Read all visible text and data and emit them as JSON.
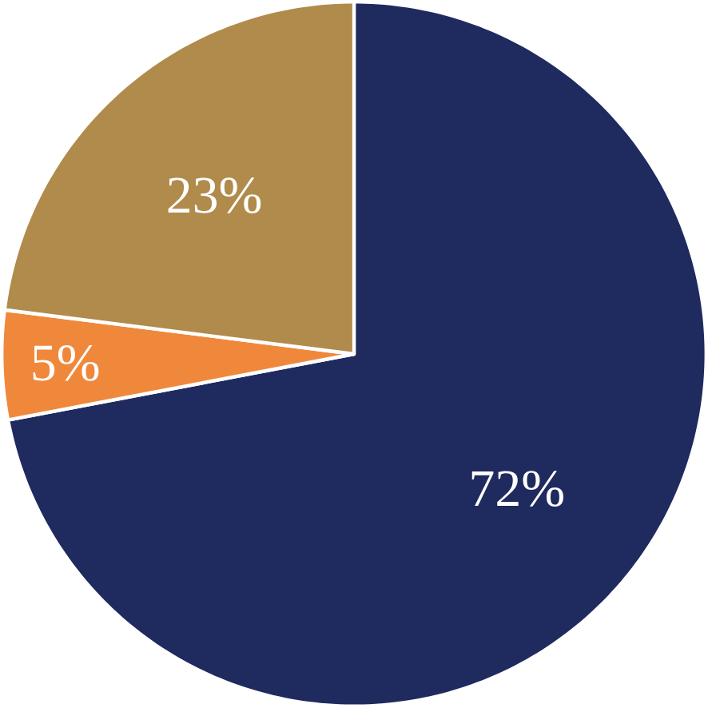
{
  "chart_data": {
    "type": "pie",
    "categories": [
      null,
      null,
      null
    ],
    "values": [
      72,
      5,
      23
    ],
    "value_labels": [
      "72%",
      "5%",
      "23%"
    ],
    "colors": [
      "#1f2a5e",
      "#f0883c",
      "#b08b4c"
    ]
  }
}
